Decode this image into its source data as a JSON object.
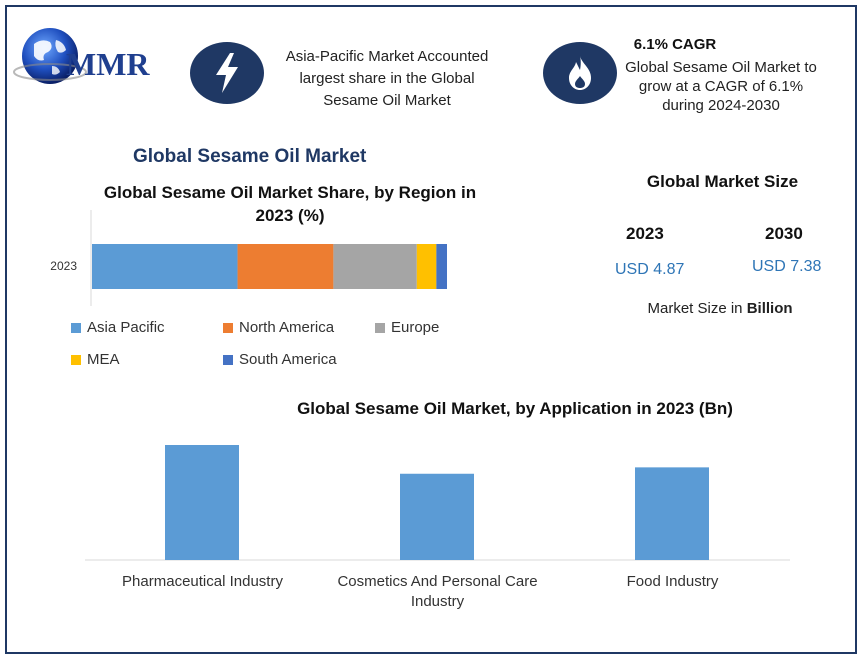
{
  "logo": {
    "text": "MMR"
  },
  "info_left": {
    "icon": "lightning-icon",
    "text_lines": [
      "Asia-Pacific Market Accounted",
      "largest share in the Global",
      "Sesame Oil Market"
    ]
  },
  "info_right": {
    "icon": "flame-icon",
    "title": "6.1% CAGR",
    "text_lines": [
      "Global Sesame Oil Market to",
      "grow at a CAGR of 6.1%",
      "during 2024-2030"
    ]
  },
  "main_title": "Global Sesame Oil Market",
  "market_size": {
    "title": "Global Market Size",
    "year1": "2023",
    "value1": "USD 4.87",
    "year2": "2030",
    "value2": "USD 7.38",
    "unit_prefix": "Market Size in ",
    "unit_bold": "Billion"
  },
  "colors": {
    "accent": "#1f3864",
    "value_blue": "#2e75b6",
    "bar_blue": "#5b9bd5"
  },
  "chart_data": [
    {
      "type": "bar",
      "orientation": "horizontal-stacked",
      "title": "Global Sesame Oil Market Share, by Region in 2023 (%)",
      "categories": [
        "2023"
      ],
      "series": [
        {
          "name": "Asia Pacific",
          "values": [
            41
          ],
          "color": "#5b9bd5"
        },
        {
          "name": "North America",
          "values": [
            27
          ],
          "color": "#ed7d31"
        },
        {
          "name": "Europe",
          "values": [
            23.5
          ],
          "color": "#a5a5a5"
        },
        {
          "name": "MEA",
          "values": [
            5.5
          ],
          "color": "#ffc000"
        },
        {
          "name": "South America",
          "values": [
            3
          ],
          "color": "#4472c4"
        }
      ],
      "xlim": [
        0,
        100
      ],
      "legend": "bottom",
      "grid": false
    },
    {
      "type": "bar",
      "title": "Global Sesame Oil Market, by Application in 2023 (Bn)",
      "categories": [
        "Pharmaceutical Industry",
        "Cosmetics And Personal Care Industry",
        "Food Industry"
      ],
      "values": [
        1.8,
        1.35,
        1.45
      ],
      "ylim": [
        0,
        1.8
      ],
      "grid": false
    }
  ]
}
